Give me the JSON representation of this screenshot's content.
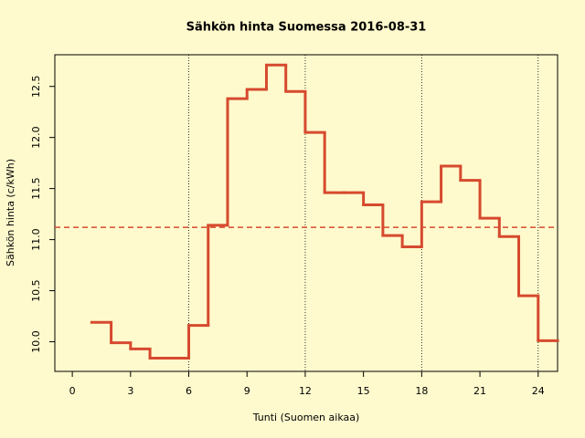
{
  "chart_data": {
    "type": "step",
    "title": "Sähkön hinta Suomessa 2016-08-31",
    "xlabel": "Tunti (Suomen aikaa)",
    "ylabel": "Sähkön hinta (c/kWh)",
    "x": [
      1,
      2,
      3,
      4,
      5,
      6,
      7,
      8,
      9,
      10,
      11,
      12,
      13,
      14,
      15,
      16,
      17,
      18,
      19,
      20,
      21,
      22,
      23,
      24
    ],
    "values": [
      10.19,
      9.99,
      9.93,
      9.84,
      9.84,
      10.16,
      11.14,
      12.38,
      12.47,
      12.71,
      12.45,
      12.05,
      11.46,
      11.46,
      11.34,
      11.04,
      10.93,
      11.37,
      11.72,
      11.58,
      11.21,
      11.03,
      10.45,
      10.01
    ],
    "color": "#d64a2e",
    "mean_line": 11.12,
    "mean_color": "#d64a2e",
    "vlines": [
      6,
      12,
      18,
      24
    ],
    "xlim": [
      -0.9,
      25
    ],
    "ylim": [
      9.71,
      12.81
    ],
    "xticks": [
      0,
      3,
      6,
      9,
      12,
      15,
      18,
      21,
      24
    ],
    "yticks": [
      {
        "value": 10,
        "label": "10.0"
      },
      10.5,
      {
        "value": 11,
        "label": "11.0"
      },
      11.5,
      {
        "value": 12,
        "label": "12.0"
      },
      12.5
    ]
  }
}
